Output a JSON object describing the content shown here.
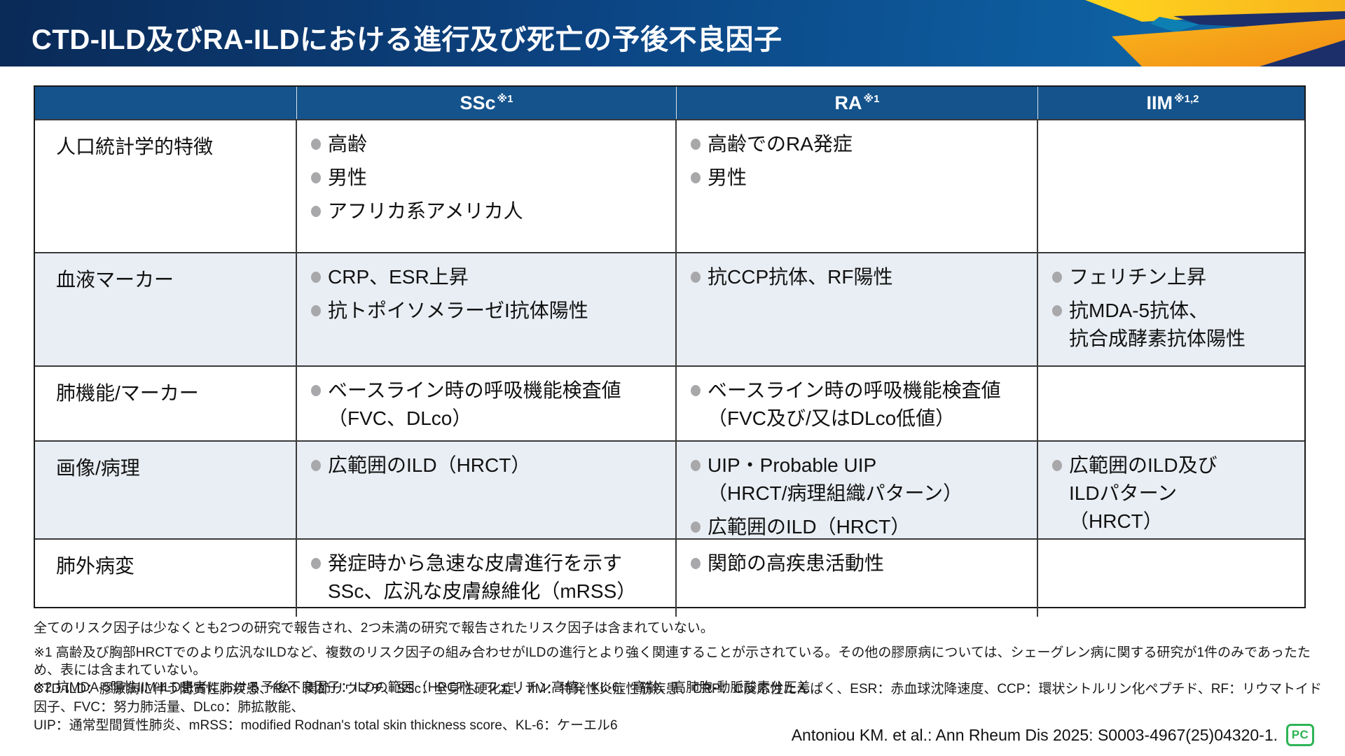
{
  "header": {
    "title": "CTD-ILD及びRA-ILDにおける進行及び死亡の予後不良因子"
  },
  "colors": {
    "header_gradient_start": "#0a2a57",
    "header_gradient_end": "#0f6daa",
    "table_header_blue": "#14538c",
    "row_alt_bg": "#e9eef4",
    "bullet_gray": "#a8a8ab",
    "accent_yellow": "#ffd61f",
    "accent_orange": "#f39a18",
    "accent_navy": "#1c2f6b",
    "badge_green": "#2eb454"
  },
  "table": {
    "columns": [
      {
        "label": "",
        "sup": ""
      },
      {
        "label": "SSc",
        "sup": "※1"
      },
      {
        "label": "RA",
        "sup": "※1"
      },
      {
        "label": "IIM",
        "sup": "※1,2"
      }
    ],
    "rows": [
      {
        "label": "人口統計学的特徴",
        "ssc": [
          [
            "高齢"
          ],
          [
            "男性"
          ],
          [
            "アフリカ系アメリカ人"
          ]
        ],
        "ra": [
          [
            "高齢でのRA発症"
          ],
          [
            "男性"
          ]
        ],
        "iim": []
      },
      {
        "label": "血液マーカー",
        "ssc": [
          [
            "CRP、ESR上昇"
          ],
          [
            "抗トポイソメラーゼI抗体陽性"
          ]
        ],
        "ra": [
          [
            "抗CCP抗体、RF陽性"
          ]
        ],
        "iim": [
          [
            "フェリチン上昇"
          ],
          [
            "抗MDA-5抗体、",
            "抗合成酵素抗体陽性"
          ]
        ]
      },
      {
        "label": "肺機能/マーカー",
        "ssc": [
          [
            "ベースライン時の呼吸機能検査値",
            "（FVC、DLco）"
          ]
        ],
        "ra": [
          [
            "ベースライン時の呼吸機能検査値",
            "（FVC及び/又はDLco低値）"
          ]
        ],
        "iim": []
      },
      {
        "label": "画像/病理",
        "ssc": [
          [
            "広範囲のILD（HRCT）"
          ]
        ],
        "ra": [
          [
            "UIP・Probable UIP",
            "（HRCT/病理組織パターン）"
          ],
          [
            "広範囲のILD（HRCT）"
          ]
        ],
        "iim": [
          [
            "広範囲のILD及び",
            "ILDパターン",
            "（HRCT）"
          ]
        ]
      },
      {
        "label": "肺外病変",
        "ssc": [
          [
            "発症時から急速な皮膚進行を示す",
            "SSc、広汎な皮膚線維化（mRSS）"
          ]
        ],
        "ra": [
          [
            "関節の高疾患活動性"
          ]
        ],
        "iim": []
      }
    ]
  },
  "footnotes": {
    "general": "全てのリスク因子は少なくとも2つの研究で報告され、2つ未満の研究で報告されたリスク因子は含まれていない。",
    "note1": "※1 高齢及び胸部HRCTでのより広汎なILDなど、複数のリスク因子の組み合わせがILDの進行とより強く関連することが示されている。その他の膠原病については、シェーグレン病に関する研究が1件のみであったため、表には含まれていない。",
    "note2": "※2 抗MDA-5陽性IIM-ILD患者における予後不良因子：ILDの範囲（HRCT）、フェリチン高値、KL-6、高齢、高肺胞-動脈酸素分圧差",
    "abbreviations_line1": "CTD-ILD：膠原病に伴う間質性肺疾患、RA：関節リウマチ、SSc：全身性硬化症、IIM：特発性炎症性筋疾患、CRP：C反応性たんぱく、ESR：赤血球沈降速度、CCP：環状シトルリン化ペプチド、RF：リウマトイド因子、FVC：努力肺活量、DLco：肺拡散能、",
    "abbreviations_line2": "UIP：通常型間質性肺炎、mRSS：modified Rodnan's total skin thickness score、KL-6：ケーエル6"
  },
  "citation": {
    "text": "Antoniou KM. et al.: Ann Rheum Dis 2025: S0003-4967(25)04320-1.",
    "badge": "PC"
  }
}
